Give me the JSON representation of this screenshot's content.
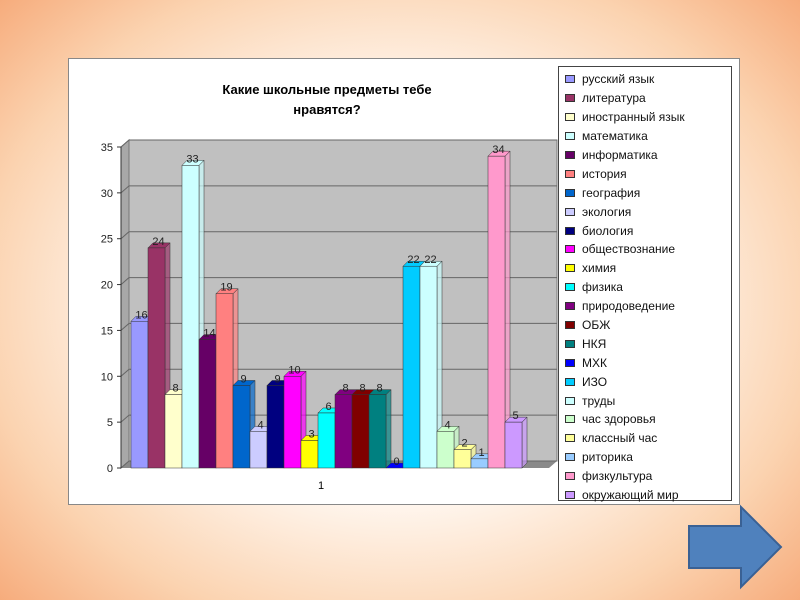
{
  "chart_data": {
    "type": "bar",
    "title": "Какие школьные предметы тебе нравятся?",
    "categories": [
      "1"
    ],
    "ylim": [
      0,
      35
    ],
    "yticks": [
      0,
      5,
      10,
      15,
      20,
      25,
      30,
      35
    ],
    "legend_position": "right",
    "grid": true,
    "series": [
      {
        "name": "русский язык",
        "values": [
          16
        ],
        "color": "#9999ff"
      },
      {
        "name": "литература",
        "values": [
          24
        ],
        "color": "#993366"
      },
      {
        "name": "иностранный язык",
        "values": [
          8
        ],
        "color": "#ffffcc"
      },
      {
        "name": "математика",
        "values": [
          33
        ],
        "color": "#ccffff"
      },
      {
        "name": "информатика",
        "values": [
          14
        ],
        "color": "#660066"
      },
      {
        "name": "история",
        "values": [
          19
        ],
        "color": "#ff8080"
      },
      {
        "name": "география",
        "values": [
          9
        ],
        "color": "#0066cc"
      },
      {
        "name": "экология",
        "values": [
          4
        ],
        "color": "#ccccff"
      },
      {
        "name": "биология",
        "values": [
          9
        ],
        "color": "#000080"
      },
      {
        "name": "обществознание",
        "values": [
          10
        ],
        "color": "#ff00ff"
      },
      {
        "name": "химия",
        "values": [
          3
        ],
        "color": "#ffff00"
      },
      {
        "name": "физика",
        "values": [
          6
        ],
        "color": "#00ffff"
      },
      {
        "name": "природоведение",
        "values": [
          8
        ],
        "color": "#800080"
      },
      {
        "name": "ОБЖ",
        "values": [
          8
        ],
        "color": "#800000"
      },
      {
        "name": "НКЯ",
        "values": [
          8
        ],
        "color": "#008080"
      },
      {
        "name": "МХК",
        "values": [
          0
        ],
        "color": "#0000ff"
      },
      {
        "name": "ИЗО",
        "values": [
          22
        ],
        "color": "#00ccff"
      },
      {
        "name": "труды",
        "values": [
          22
        ],
        "color": "#ccffff"
      },
      {
        "name": "час здоровья",
        "values": [
          4
        ],
        "color": "#ccffcc"
      },
      {
        "name": "классный час",
        "values": [
          2
        ],
        "color": "#ffff99"
      },
      {
        "name": "риторика",
        "values": [
          1
        ],
        "color": "#99ccff"
      },
      {
        "name": "физкультура",
        "values": [
          34
        ],
        "color": "#ff99cc"
      },
      {
        "name": "окружающий мир",
        "values": [
          5
        ],
        "color": "#cc99ff"
      }
    ]
  },
  "navigation": {
    "next_icon": "arrow-right-icon",
    "arrow_color": "#4f81bd"
  }
}
